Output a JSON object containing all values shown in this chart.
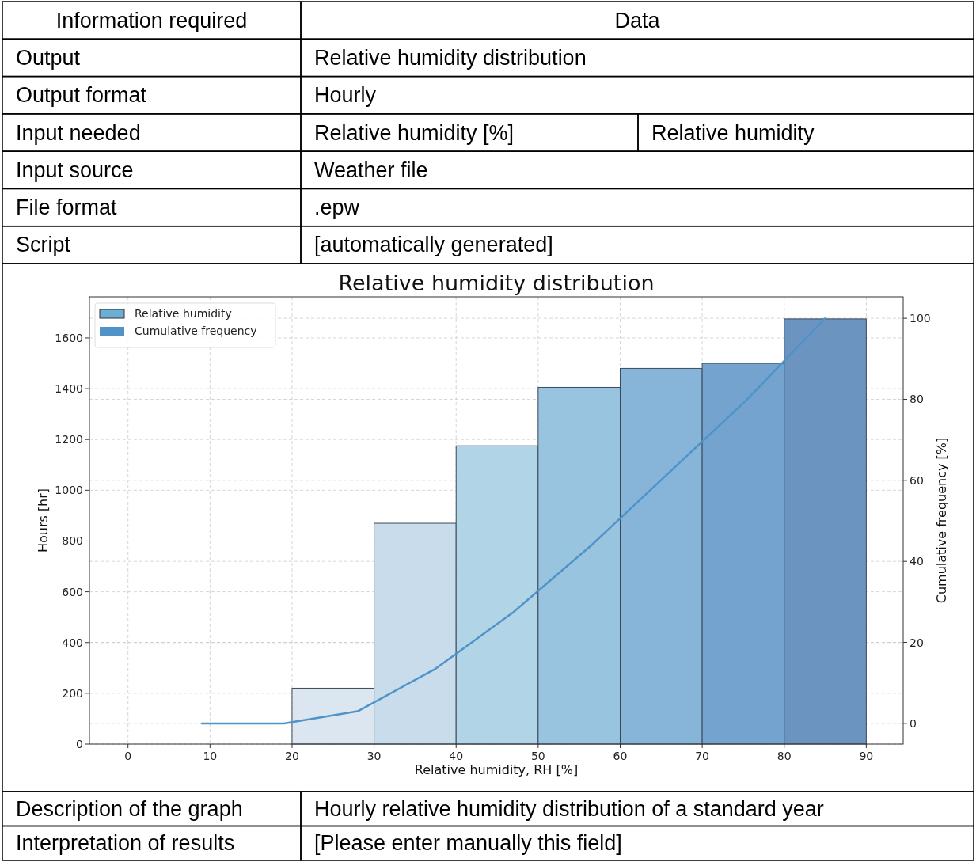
{
  "chart_data": [
    {
      "type": "other",
      "annotations": [
        "Information required",
        "Data",
        "Output",
        "Relative humidity distribution",
        "Output format",
        "Hourly",
        "Input needed",
        "Relative humidity [%]",
        "Relative humidity",
        "Input source",
        "Weather file",
        "File format",
        ".epw",
        "Script",
        "[automatically generated]"
      ]
    },
    {
      "type": "histogram",
      "title": "Relative humidity distribution",
      "xlabel": "Relative humidity, RH [%]",
      "ylabel": "Hours [hr]",
      "y2label": "Cumulative frequency [%]",
      "bins": [
        20,
        30,
        40,
        50,
        60,
        70,
        80,
        90
      ],
      "series": [
        {
          "name": "Relative humidity",
          "color": "#6baed6",
          "colors": [
            "#dce6f1",
            "#c8dcec",
            "#b2d4e7",
            "#99c4e0",
            "#86b5d9",
            "#74a3cf",
            "#6b94c0"
          ],
          "values": [
            220,
            870,
            1175,
            1405,
            1480,
            1500,
            1675
          ]
        },
        {
          "name": "Cumulative frequency",
          "type": "line",
          "axis": "y2",
          "color": "#4f93c8",
          "x": [
            9,
            19,
            28,
            37.5,
            47,
            56.5,
            66,
            75.5,
            85
          ],
          "values": [
            0,
            0,
            3,
            13.5,
            27.5,
            44,
            62,
            80,
            100
          ]
        }
      ],
      "xlim": [
        -4.7,
        94.5
      ],
      "xticks": [
        0,
        10,
        20,
        30,
        40,
        50,
        60,
        70,
        80,
        90
      ],
      "ylim": [
        0,
        1762
      ],
      "yticks": [
        0,
        200,
        400,
        600,
        800,
        1000,
        1200,
        1400,
        1600
      ],
      "y2lim": [
        -5.1,
        105.3
      ],
      "y2ticks": [
        0,
        20,
        40,
        60,
        80,
        100
      ],
      "grid": true,
      "legend": "top left"
    },
    {
      "type": "other",
      "annotations": [
        "Description of the graph",
        "Hourly relative humidity distribution of a standard year",
        "Interpretation of results",
        "[Please enter manually this field]"
      ]
    }
  ]
}
